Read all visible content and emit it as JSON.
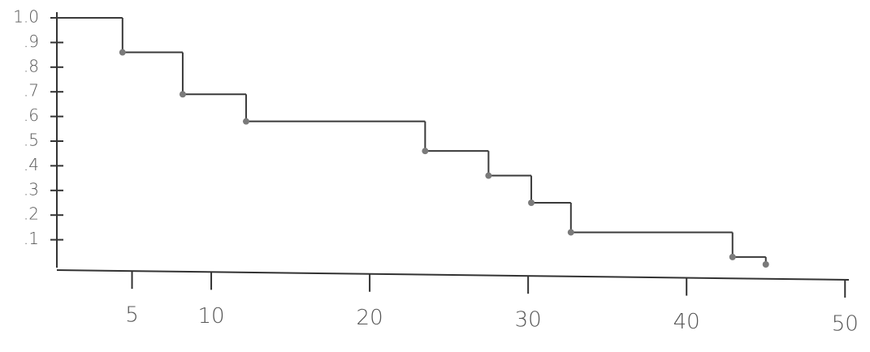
{
  "chart_data": {
    "type": "line",
    "step": true,
    "x": [
      0,
      4.4,
      8.2,
      12.2,
      23.5,
      27.5,
      30.2,
      32.7,
      42.9,
      45
    ],
    "values": [
      1.0,
      0.86,
      0.69,
      0.58,
      0.46,
      0.36,
      0.25,
      0.13,
      0.03,
      0
    ],
    "color": "#3a3a3a",
    "marker_color": "#7a7a7a",
    "xlim": [
      0,
      50.5
    ],
    "xticks": [
      5,
      10,
      20,
      30,
      40,
      50
    ],
    "ylim": [
      0,
      1.0
    ],
    "yticks": [
      {
        "value": 0.1,
        "label": ".1"
      },
      {
        "value": 0.2,
        "label": ".2"
      },
      {
        "value": 0.3,
        "label": ".3"
      },
      {
        "value": 0.4,
        "label": ".4"
      },
      {
        "value": 0.5,
        "label": ".5"
      },
      {
        "value": 0.6,
        "label": ".6"
      },
      {
        "value": 0.7,
        "label": ".7"
      },
      {
        "value": 0.8,
        "label": ".8"
      },
      {
        "value": 0.9,
        "label": ".9"
      },
      {
        "value": 1.0,
        "label": "1.0"
      }
    ],
    "grid": false
  }
}
